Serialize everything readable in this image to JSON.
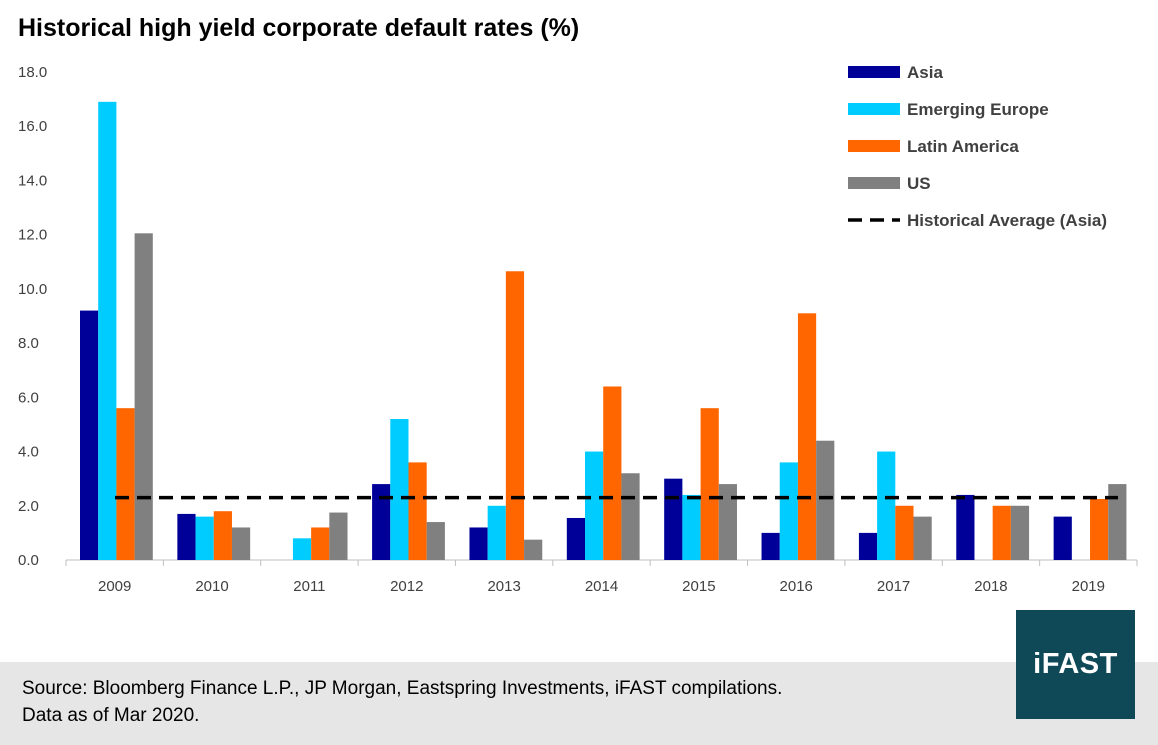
{
  "chart_data": {
    "type": "bar",
    "title": "Historical high yield corporate default rates (%)",
    "categories": [
      "2009",
      "2010",
      "2011",
      "2012",
      "2013",
      "2014",
      "2015",
      "2016",
      "2017",
      "2018",
      "2019"
    ],
    "series": [
      {
        "name": "Asia",
        "color": "#000099",
        "values": [
          9.2,
          1.7,
          null,
          2.8,
          1.2,
          1.55,
          3.0,
          1.0,
          1.0,
          2.4,
          1.6
        ]
      },
      {
        "name": "Emerging Europe",
        "color": "#00ccff",
        "values": [
          16.9,
          1.6,
          0.8,
          5.2,
          2.0,
          4.0,
          2.4,
          3.6,
          4.0,
          null,
          null
        ]
      },
      {
        "name": "Latin America",
        "color": "#ff6600",
        "values": [
          5.6,
          1.8,
          1.2,
          3.6,
          10.65,
          6.4,
          5.6,
          9.1,
          2.0,
          2.0,
          2.25
        ]
      },
      {
        "name": "US",
        "color": "#808080",
        "values": [
          12.05,
          1.2,
          1.75,
          1.4,
          0.75,
          3.2,
          2.8,
          4.4,
          1.6,
          2.0,
          2.8
        ]
      }
    ],
    "reference_line": {
      "name": "Historical Average (Asia)",
      "value": 2.3,
      "style": "dashed",
      "color": "#000000"
    },
    "y_ticks": [
      "0.0",
      "2.0",
      "4.0",
      "6.0",
      "8.0",
      "10.0",
      "12.0",
      "14.0",
      "16.0",
      "18.0"
    ],
    "ylim": [
      0,
      18
    ],
    "xlabel": "",
    "ylabel": "",
    "legend_position": "top-right"
  },
  "footer": {
    "line1": "Source: Bloomberg Finance L.P., JP Morgan, Eastspring Investments, iFAST compilations.",
    "line2": "Data as of Mar 2020."
  },
  "logo": {
    "text": "iFAST",
    "color": "#0f4958"
  }
}
